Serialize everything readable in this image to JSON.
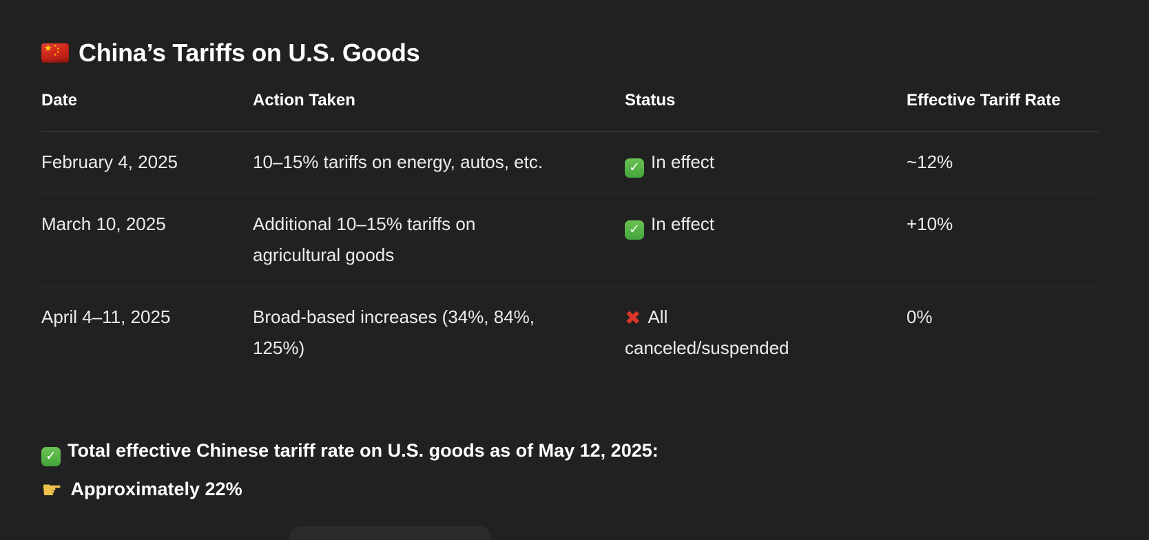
{
  "window": {
    "background": "#212121"
  },
  "title": {
    "text": "China’s Tariffs on U.S. Goods"
  },
  "icons": {
    "flag_name": "china-flag",
    "star_glyph": "★",
    "check_glyph": "✓",
    "cross_glyph": "✖",
    "hand_glyph": "☛"
  },
  "colors": {
    "background": "#212121",
    "text": "#ececec",
    "heading": "#ffffff",
    "divider_strong": "#3e3e3e",
    "divider_soft": "#2e2e2e",
    "check_green": "#4fae3e",
    "cross_red": "#dc362a",
    "flag_red": "#d1271b",
    "star_yellow": "#ffde00",
    "hand_gold": "#f0c14b"
  },
  "table": {
    "headers": {
      "date": "Date",
      "action": "Action Taken",
      "status": "Status",
      "rate": "Effective Tariff Rate"
    },
    "rows": [
      {
        "date": "February 4, 2025",
        "action": "10–15% tariffs on energy, autos, etc.",
        "status_icon": "check",
        "status": "In effect",
        "rate": "~12%"
      },
      {
        "date": "March 10, 2025",
        "action": "Additional 10–15% tariffs on agricultural goods",
        "status_icon": "check",
        "status": "In effect",
        "rate": "+10%"
      },
      {
        "date": "April 4–11, 2025",
        "action": "Broad-based increases (34%, 84%, 125%)",
        "status_icon": "cross",
        "status": "All canceled/suspended",
        "rate": "0%"
      }
    ]
  },
  "summary": {
    "line1": "Total effective Chinese tariff rate on U.S. goods as of May 12, 2025:",
    "line2": "Approximately 22%"
  }
}
